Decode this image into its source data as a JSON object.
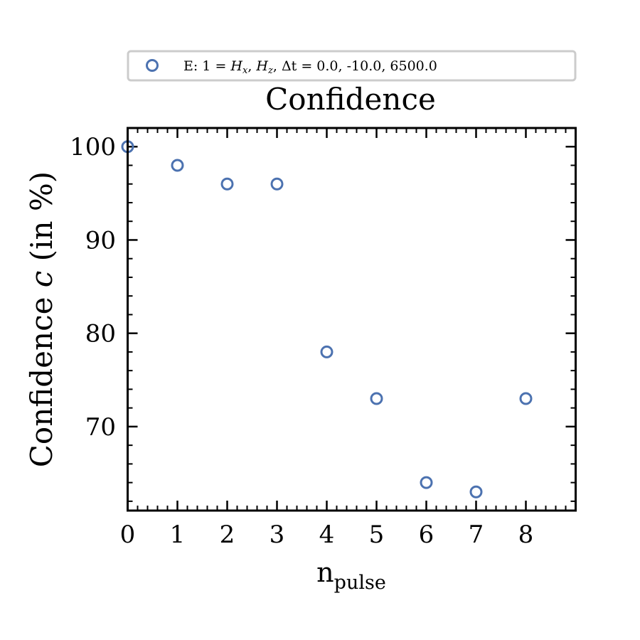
{
  "chart_data": {
    "type": "scatter",
    "title": "Confidence",
    "xlabel_main": "n",
    "xlabel_sub": "pulse",
    "ylabel_pre": "Confidence ",
    "ylabel_var": "c",
    "ylabel_post": " (in %)",
    "xlim": [
      0,
      9
    ],
    "ylim": [
      61,
      102
    ],
    "xticks": [
      0,
      1,
      2,
      3,
      4,
      5,
      6,
      7,
      8
    ],
    "yticks": [
      70,
      80,
      90,
      100
    ],
    "grid": false,
    "legend_position": "top-center",
    "marker": "hollow-circle",
    "series": [
      {
        "name": "E: 1 = H_x, H_z, Δt =  0.0, -10.0, 6500.0",
        "color": "#4c72b0",
        "x": [
          0,
          1,
          2,
          3,
          4,
          5,
          6,
          7,
          8
        ],
        "y": [
          100,
          98,
          96,
          96,
          78,
          73,
          64,
          63,
          73
        ]
      }
    ]
  },
  "legend": {
    "prefix": "E: 1 = ",
    "h1": "H",
    "h1_sub": "x",
    "comma": ", ",
    "h2": "H",
    "h2_sub": "z",
    "dt": ", Δt = ",
    "values": " 0.0, -10.0, 6500.0"
  }
}
